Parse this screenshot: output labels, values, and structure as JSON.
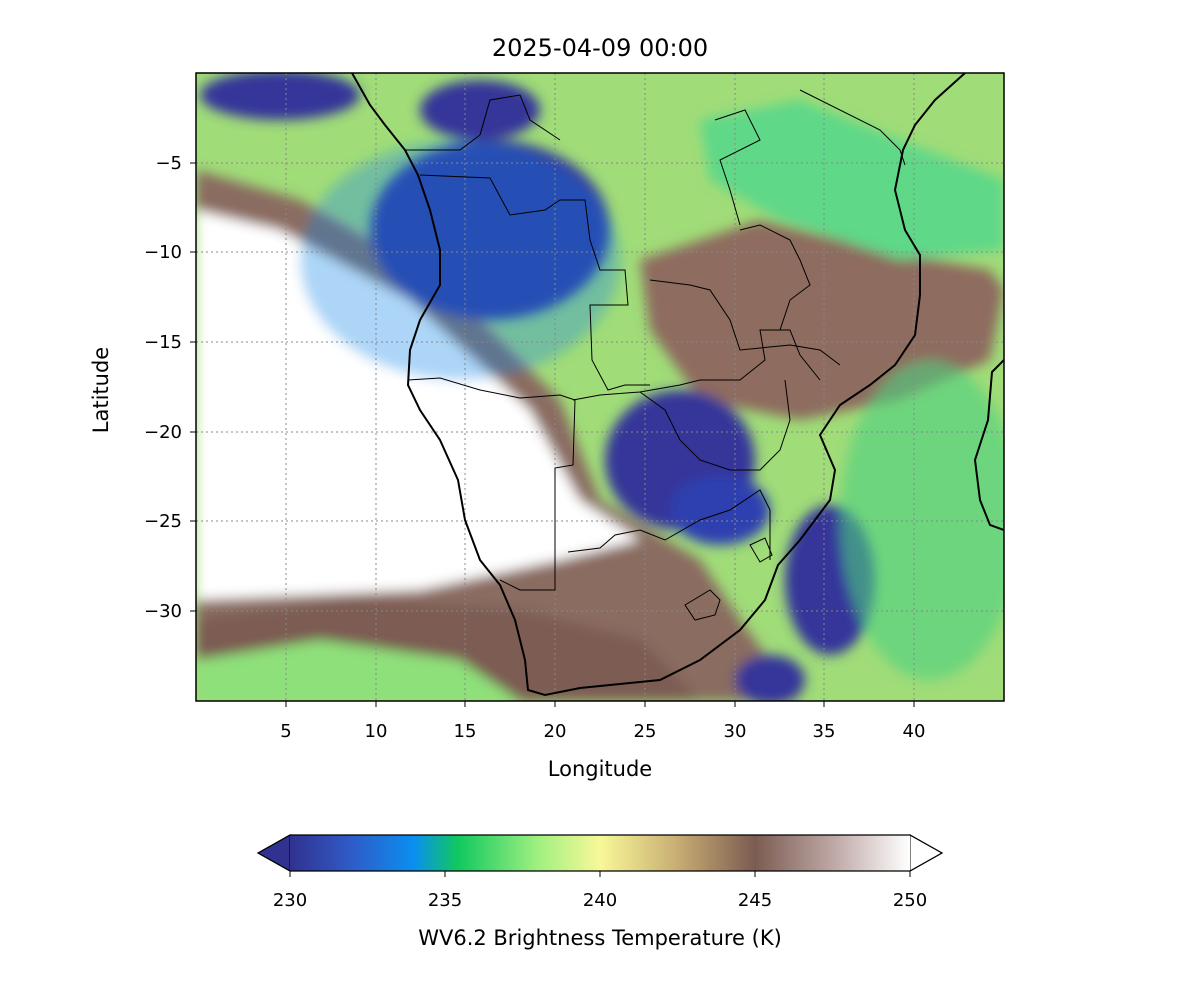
{
  "figure": {
    "title": "2025-04-09 00:00",
    "xlabel": "Longitude",
    "ylabel": "Latitude",
    "x_ticks": [
      "5",
      "10",
      "15",
      "20",
      "25",
      "30",
      "35",
      "40"
    ],
    "y_ticks": [
      "−5",
      "−10",
      "−15",
      "−20",
      "−25",
      "−30"
    ]
  },
  "colorbar": {
    "label": "WV6.2 Brightness Temperature (K)",
    "ticks": [
      "230",
      "235",
      "240",
      "245",
      "250"
    ],
    "colors": [
      "#31318f",
      "#0a8ff0",
      "#10c860",
      "#f8f898",
      "#7c5c52",
      "#ffffff"
    ]
  },
  "chart_data": {
    "type": "heatmap",
    "variable": "WV6.2 Brightness Temperature (K)",
    "x_range": [
      0,
      45
    ],
    "y_range": [
      -35,
      0
    ],
    "value_range": [
      230,
      250
    ],
    "x_tick_values": [
      5,
      10,
      15,
      20,
      25,
      30,
      35,
      40
    ],
    "y_tick_values": [
      -5,
      -10,
      -15,
      -20,
      -25,
      -30
    ],
    "colorbar_tick_values": [
      230,
      235,
      240,
      245,
      250
    ],
    "grid": true
  }
}
